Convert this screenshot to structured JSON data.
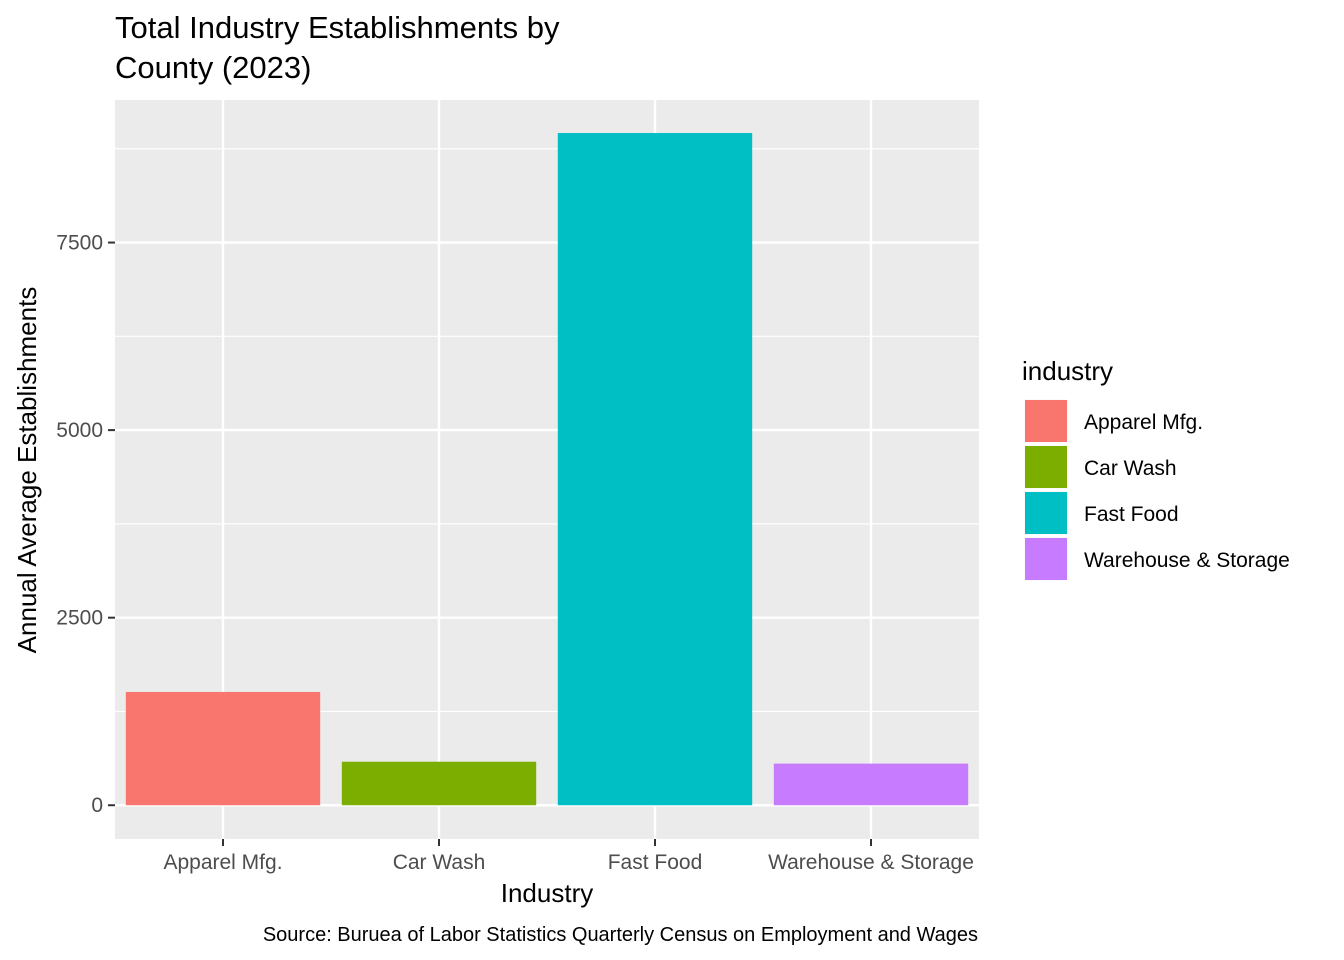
{
  "chart_data": {
    "type": "bar",
    "title_lines": [
      "Total Industry Establishments by",
      "County (2023)"
    ],
    "xlabel": "Industry",
    "ylabel": "Annual Average Establishments",
    "categories": [
      "Apparel Mfg.",
      "Car Wash",
      "Fast Food",
      "Warehouse & Storage"
    ],
    "values": [
      1510,
      580,
      8960,
      555
    ],
    "colors": [
      "#F8766D",
      "#7CAE00",
      "#00BFC4",
      "#C77CFF"
    ],
    "ylim": [
      -450,
      9400
    ],
    "yticks": [
      0,
      2500,
      5000,
      7500
    ],
    "ytick_labels": [
      "0",
      "2500",
      "5000",
      "7500"
    ],
    "grid": true,
    "legend": {
      "title": "industry",
      "position": "right",
      "entries": [
        "Apparel Mfg.",
        "Car Wash",
        "Fast Food",
        "Warehouse & Storage"
      ]
    },
    "caption": "Source: Buruea of Labor Statistics Quarterly Census on Employment and Wages",
    "panel_background": "#EBEBEB",
    "grid_color": "#FFFFFF"
  }
}
